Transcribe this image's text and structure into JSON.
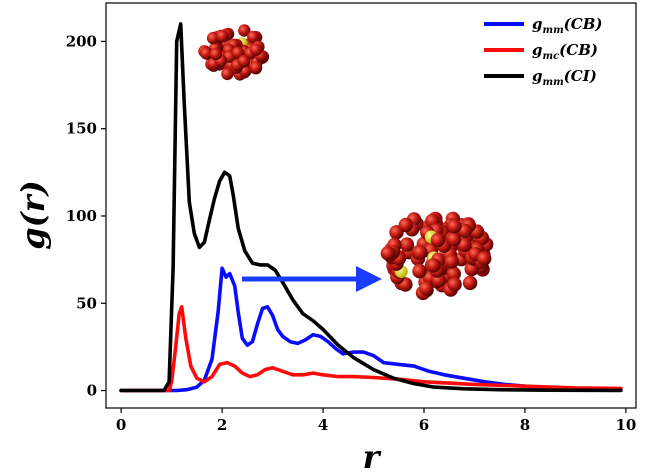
{
  "chart_data": {
    "type": "line",
    "title": "",
    "xlabel": "r",
    "ylabel": "g(r)",
    "xlim": [
      -0.3,
      10.2
    ],
    "ylim": [
      -10,
      222
    ],
    "xticks": [
      0,
      2,
      4,
      6,
      8,
      10
    ],
    "yticks": [
      0,
      50,
      100,
      150,
      200
    ],
    "grid": false,
    "legend": "top-right",
    "colors": {
      "gmm_CB": "#0a0aff",
      "gmc_CB": "#ff0a0a",
      "gmm_CI": "#000000",
      "arrow": "#1a3cff",
      "bead": "#b01010",
      "core": "#e8e000"
    },
    "series": [
      {
        "name": "g_mm(CB)",
        "color": "#0a0aff",
        "x": [
          0,
          0.9,
          1.1,
          1.3,
          1.5,
          1.65,
          1.8,
          1.92,
          2.0,
          2.08,
          2.15,
          2.25,
          2.32,
          2.4,
          2.5,
          2.6,
          2.7,
          2.8,
          2.9,
          3.0,
          3.1,
          3.2,
          3.35,
          3.5,
          3.65,
          3.8,
          3.95,
          4.1,
          4.25,
          4.4,
          4.6,
          4.8,
          5.0,
          5.2,
          5.5,
          5.8,
          6.1,
          6.4,
          6.8,
          7.2,
          7.6,
          8.0,
          8.5,
          9.0,
          9.5,
          9.9
        ],
        "y": [
          0,
          0,
          0,
          0.5,
          2,
          6,
          18,
          45,
          70,
          65,
          67,
          60,
          45,
          30,
          26,
          28,
          38,
          47,
          48,
          43,
          35,
          31,
          28,
          27,
          29,
          32,
          31,
          28,
          24,
          21,
          22,
          22,
          20,
          16,
          15,
          14,
          11,
          9,
          7,
          5,
          3.5,
          2.5,
          1.5,
          1,
          0.5,
          0.3
        ]
      },
      {
        "name": "g_mc(CB)",
        "color": "#ff0a0a",
        "x": [
          0,
          0.95,
          1.0,
          1.08,
          1.15,
          1.2,
          1.28,
          1.38,
          1.5,
          1.65,
          1.8,
          1.95,
          2.1,
          2.25,
          2.4,
          2.55,
          2.7,
          2.85,
          3.0,
          3.2,
          3.4,
          3.6,
          3.8,
          4.0,
          4.3,
          4.6,
          5.0,
          5.5,
          6.0,
          7.0,
          8.0,
          9.0,
          9.9
        ],
        "y": [
          0,
          0,
          5,
          25,
          44,
          48,
          30,
          14,
          7,
          5,
          8,
          15,
          16,
          14,
          10,
          8,
          9,
          12,
          13,
          11,
          9,
          9,
          10,
          9,
          8,
          8,
          7.5,
          6.5,
          5,
          3.5,
          2.5,
          1.5,
          1.2
        ]
      },
      {
        "name": "g_mm(CI)",
        "color": "#000000",
        "x": [
          0,
          0.85,
          0.95,
          1.03,
          1.1,
          1.18,
          1.25,
          1.35,
          1.45,
          1.55,
          1.65,
          1.75,
          1.85,
          1.95,
          2.05,
          2.15,
          2.22,
          2.32,
          2.45,
          2.6,
          2.75,
          2.9,
          3.05,
          3.2,
          3.4,
          3.6,
          3.8,
          4.0,
          4.3,
          4.6,
          5.0,
          5.4,
          5.8,
          6.2,
          6.8,
          7.5,
          8.5,
          9.9
        ],
        "y": [
          0,
          0,
          5,
          70,
          200,
          210,
          165,
          108,
          90,
          82,
          85,
          98,
          110,
          120,
          125,
          123,
          112,
          93,
          80,
          73,
          72,
          72,
          69,
          62,
          52,
          44,
          40,
          35,
          26,
          19,
          12,
          7,
          4,
          2,
          1,
          0.5,
          0.2,
          0.1
        ]
      }
    ]
  },
  "legend": [
    {
      "name": "g_mm(CB)",
      "base": "g",
      "sub": "mm",
      "arg": "(CB)",
      "color": "#0a0aff"
    },
    {
      "name": "g_mc(CB)",
      "base": "g",
      "sub": "mc",
      "arg": "(CB)",
      "color": "#ff0a0a"
    },
    {
      "name": "g_mm(CI)",
      "base": "g",
      "sub": "mm",
      "arg": "(CI)",
      "color": "#000000"
    }
  ],
  "axis_titles": {
    "x": "r",
    "y": "g(r)"
  }
}
